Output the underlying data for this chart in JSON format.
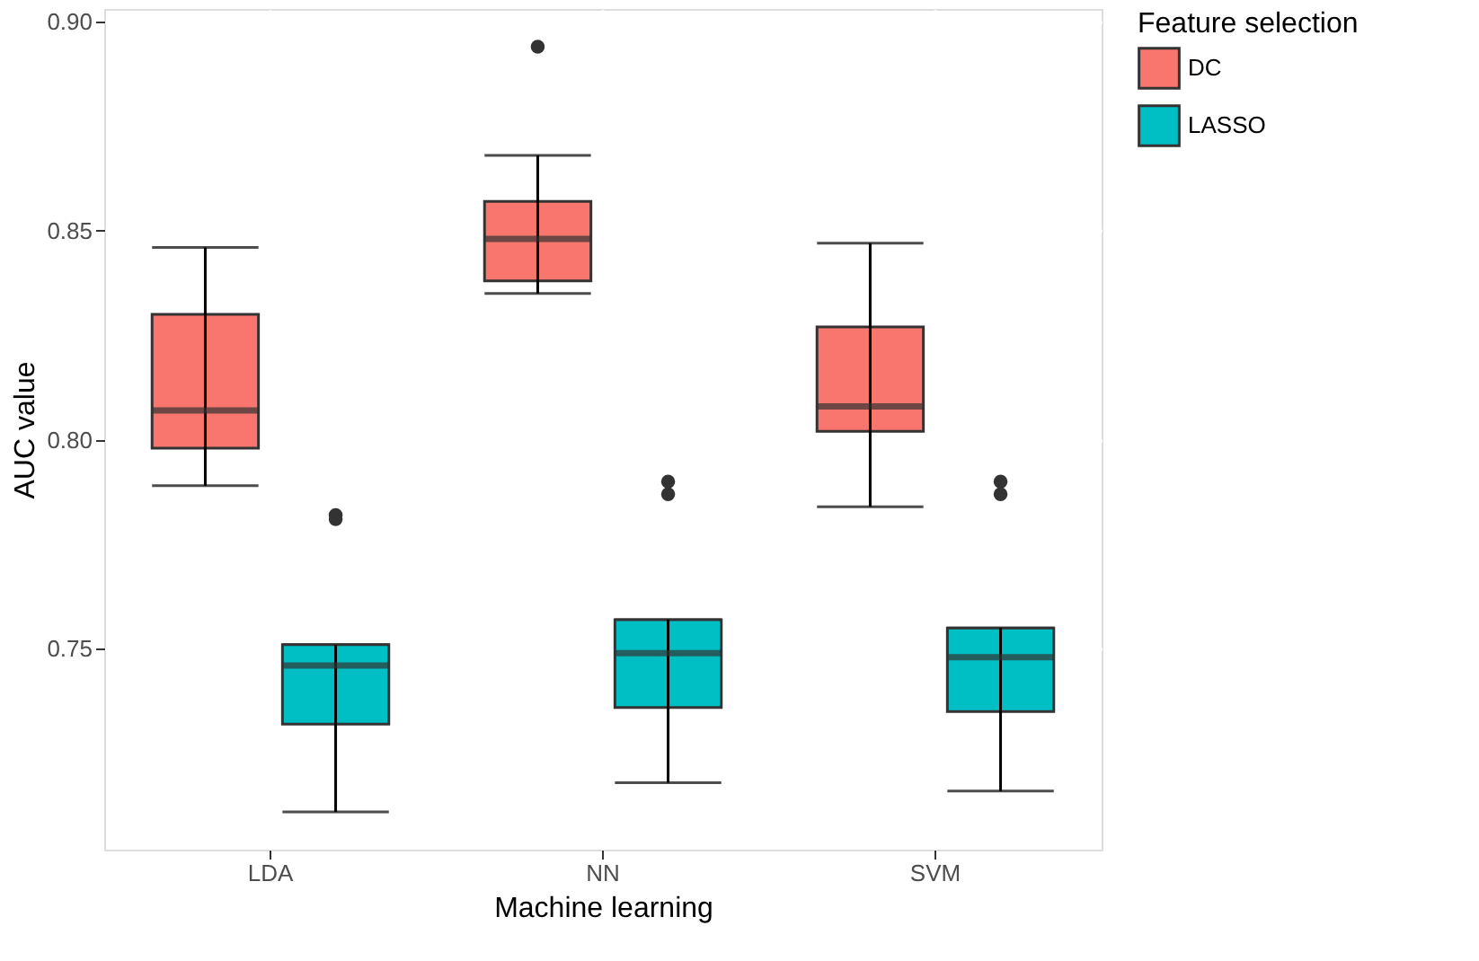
{
  "chart_data": {
    "type": "box",
    "xlabel": "Machine learning",
    "ylabel": "AUC value",
    "legend_title": "Feature selection",
    "legend": "right",
    "grid": true,
    "categories": [
      "LDA",
      "NN",
      "SVM"
    ],
    "ylim": [
      0.702,
      0.903
    ],
    "yticks": [
      {
        "value": 0.75,
        "label": "0.75"
      },
      {
        "value": 0.8,
        "label": "0.80"
      },
      {
        "value": 0.85,
        "label": "0.85"
      },
      {
        "value": 0.9,
        "label": "0.90"
      }
    ],
    "series": [
      {
        "name": "DC",
        "color": "#f8766d",
        "boxes": [
          {
            "low": 0.789,
            "q1": 0.798,
            "median": 0.807,
            "q3": 0.83,
            "high": 0.846
          },
          {
            "low": 0.835,
            "q1": 0.838,
            "median": 0.848,
            "q3": 0.857,
            "high": 0.868,
            "outliers": [
              0.894
            ]
          },
          {
            "low": 0.784,
            "q1": 0.802,
            "median": 0.808,
            "q3": 0.827,
            "high": 0.847
          }
        ]
      },
      {
        "name": "LASSO",
        "color": "#00bfc4",
        "boxes": [
          {
            "low": 0.711,
            "q1": 0.732,
            "median": 0.746,
            "q3": 0.751,
            "high": 0.751,
            "outliers": [
              0.782,
              0.781
            ]
          },
          {
            "low": 0.718,
            "q1": 0.736,
            "median": 0.749,
            "q3": 0.757,
            "high": 0.757,
            "outliers": [
              0.79,
              0.787
            ]
          },
          {
            "low": 0.716,
            "q1": 0.735,
            "median": 0.748,
            "q3": 0.755,
            "high": 0.755,
            "outliers": [
              0.79,
              0.787
            ]
          }
        ]
      }
    ]
  }
}
